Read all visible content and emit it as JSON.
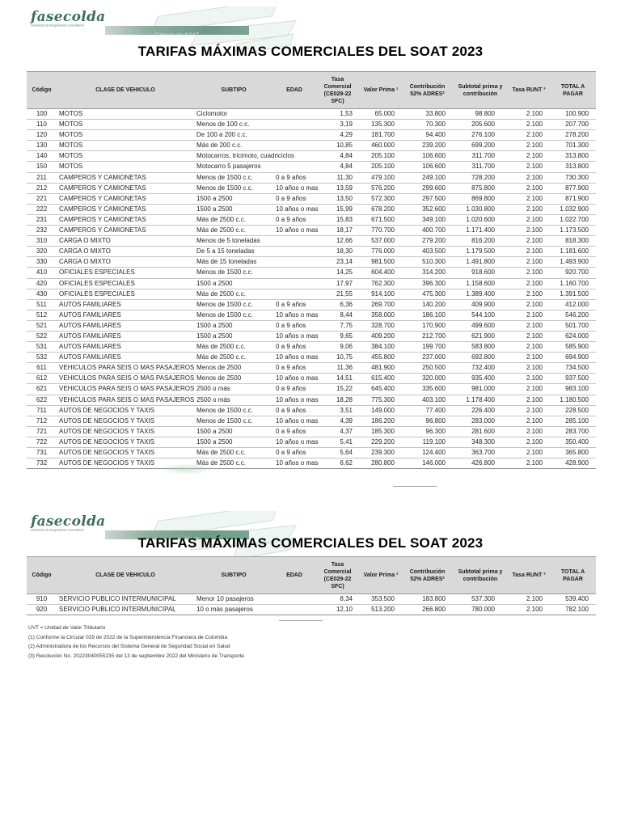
{
  "page": {
    "title": "TARIFAS MÁXIMAS COMERCIALES DEL SOAT 2023"
  },
  "logo": {
    "brand": "fasecolda",
    "tagline": "Federación de Aseguradores Colombianos",
    "banner": "Cámara de SOAT",
    "brand_color": "#3d6f5f",
    "banner_green": "#6f9a87"
  },
  "colors": {
    "table_header_bg": "#d9d9d9",
    "row_border": "#c3c3c3"
  },
  "table_headers": [
    "Código",
    "CLASE DE VEHICULO",
    "SUBTIPO",
    "EDAD",
    "Tasa Comercial (CE029-22 SFC)",
    "Valor Prima ¹",
    "Contribución 52% ADRES²",
    "Subtotal prima y contribución",
    "Tasa RUNT ³",
    "TOTAL A PAGAR"
  ],
  "table1": {
    "rows": [
      [
        "100",
        "MOTOS",
        "Ciclomotor",
        "",
        "1,53",
        "65.000",
        "33.800",
        "98.800",
        "2.100",
        "100.900"
      ],
      [
        "110",
        "MOTOS",
        "Menos de 100 c.c.",
        "",
        "3,19",
        "135.300",
        "70.300",
        "205.600",
        "2.100",
        "207.700"
      ],
      [
        "120",
        "MOTOS",
        "De 100 a 200 c.c.",
        "",
        "4,29",
        "181.700",
        "94.400",
        "276.100",
        "2.100",
        "278.200"
      ],
      [
        "130",
        "MOTOS",
        "Más de 200 c.c.",
        "",
        "10,85",
        "460.000",
        "239.200",
        "699.200",
        "2.100",
        "701.300"
      ],
      [
        "140",
        "MOTOS",
        "Motocarros, tricimoto, cuadriciclos",
        "",
        "4,84",
        "205.100",
        "106.600",
        "311.700",
        "2.100",
        "313.800"
      ],
      [
        "150",
        "MOTOS",
        "Motocarro 5 pasajeros",
        "",
        "4,84",
        "205.100",
        "106.600",
        "311.700",
        "2.100",
        "313.800"
      ],
      [
        "211",
        "CAMPEROS Y CAMIONETAS",
        "Menos de 1500 c.c.",
        "0 a 9 años",
        "11,30",
        "479.100",
        "249.100",
        "728.200",
        "2.100",
        "730.300"
      ],
      [
        "212",
        "CAMPEROS Y CAMIONETAS",
        "Menos de 1500 c.c.",
        "10 años o mas",
        "13,59",
        "576.200",
        "299.600",
        "875.800",
        "2.100",
        "877.900"
      ],
      [
        "221",
        "CAMPEROS Y CAMIONETAS",
        "1500 a 2500",
        "0 a 9 años",
        "13,50",
        "572.300",
        "297.500",
        "869.800",
        "2.100",
        "871.900"
      ],
      [
        "222",
        "CAMPEROS Y CAMIONETAS",
        "1500 a 2500",
        "10 años o mas",
        "15,99",
        "678.200",
        "352.600",
        "1.030.800",
        "2.100",
        "1.032.900"
      ],
      [
        "231",
        "CAMPEROS Y CAMIONETAS",
        "Más de 2500 c.c.",
        "0 a 9 años",
        "15,83",
        "671.500",
        "349.100",
        "1.020.600",
        "2.100",
        "1.022.700"
      ],
      [
        "232",
        "CAMPEROS Y CAMIONETAS",
        "Más de 2500 c.c.",
        "10 años o mas",
        "18,17",
        "770.700",
        "400.700",
        "1.171.400",
        "2.100",
        "1.173.500"
      ],
      [
        "310",
        "CARGA O MIXTO",
        "Menos de 5 toneladas",
        "",
        "12,66",
        "537.000",
        "279.200",
        "816.200",
        "2.100",
        "818.300"
      ],
      [
        "320",
        "CARGA O MIXTO",
        "De 5 a 15 toneladas",
        "",
        "18,30",
        "776.000",
        "403.500",
        "1.179.500",
        "2.100",
        "1.181.600"
      ],
      [
        "330",
        "CARGA O MIXTO",
        "Más de 15 toneladas",
        "",
        "23,14",
        "981.500",
        "510.300",
        "1.491.800",
        "2.100",
        "1.493.900"
      ],
      [
        "410",
        "OFICIALES ESPECIALES",
        "Menos de 1500 c.c.",
        "",
        "14,25",
        "604.400",
        "314.200",
        "918.600",
        "2.100",
        "920.700"
      ],
      [
        "420",
        "OFICIALES ESPECIALES",
        "1500 a 2500",
        "",
        "17,97",
        "762.300",
        "396.300",
        "1.158.600",
        "2.100",
        "1.160.700"
      ],
      [
        "430",
        "OFICIALES ESPECIALES",
        "Más de 2500 c.c.",
        "",
        "21,55",
        "914.100",
        "475.300",
        "1.389.400",
        "2.100",
        "1.391.500"
      ],
      [
        "511",
        "AUTOS FAMILIARES",
        "Menos de 1500 c.c.",
        "0 a 9 años",
        "6,36",
        "269.700",
        "140.200",
        "409.900",
        "2.100",
        "412.000"
      ],
      [
        "512",
        "AUTOS FAMILIARES",
        "Menos de 1500 c.c.",
        "10 años o mas",
        "8,44",
        "358.000",
        "186.100",
        "544.100",
        "2.100",
        "546.200"
      ],
      [
        "521",
        "AUTOS FAMILIARES",
        "1500 a 2500",
        "0 a 9 años",
        "7,75",
        "328.700",
        "170.900",
        "499.600",
        "2.100",
        "501.700"
      ],
      [
        "522",
        "AUTOS FAMILIARES",
        "1500 a 2500",
        "10 años o mas",
        "9,65",
        "409.200",
        "212.700",
        "621.900",
        "2.100",
        "624.000"
      ],
      [
        "531",
        "AUTOS FAMILIARES",
        "Más de 2500 c.c.",
        "0 a 9 años",
        "9,06",
        "384.100",
        "199.700",
        "583.800",
        "2.100",
        "585.900"
      ],
      [
        "532",
        "AUTOS FAMILIARES",
        "Más de 2500 c.c.",
        "10 años o mas",
        "10,75",
        "455.800",
        "237.000",
        "692.800",
        "2.100",
        "694.900"
      ],
      [
        "611",
        "VEHICULOS PARA SEIS O MAS PASAJEROS",
        "Menos de 2500",
        "0 a 9 años",
        "11,36",
        "481.900",
        "250.500",
        "732.400",
        "2.100",
        "734.500"
      ],
      [
        "612",
        "VEHICULOS PARA SEIS O MAS PASAJEROS",
        "Menos de 2500",
        "10 años o mas",
        "14,51",
        "615.400",
        "320.000",
        "935.400",
        "2.100",
        "937.500"
      ],
      [
        "621",
        "VEHICULOS PARA SEIS O MAS PASAJEROS",
        "2500 o más",
        "0 a 9 años",
        "15,22",
        "645.400",
        "335.600",
        "981.000",
        "2.100",
        "983.100"
      ],
      [
        "622",
        "VEHICULOS PARA SEIS O MAS PASAJEROS",
        "2500 o más",
        "10 años o mas",
        "18,28",
        "775.300",
        "403.100",
        "1.178.400",
        "2.100",
        "1.180.500"
      ],
      [
        "711",
        "AUTOS DE NEGOCIOS Y TAXIS",
        "Menos de 1500 c.c.",
        "0 a 9 años",
        "3,51",
        "149.000",
        "77.400",
        "226.400",
        "2.100",
        "228.500"
      ],
      [
        "712",
        "AUTOS DE NEGOCIOS Y TAXIS",
        "Menos de 1500 c.c.",
        "10 años o mas",
        "4,39",
        "186.200",
        "96.800",
        "283.000",
        "2.100",
        "285.100"
      ],
      [
        "721",
        "AUTOS DE NEGOCIOS Y TAXIS",
        "1500 a 2500",
        "0 a 9 años",
        "4,37",
        "185.300",
        "96.300",
        "281.600",
        "2.100",
        "283.700"
      ],
      [
        "722",
        "AUTOS DE NEGOCIOS Y TAXIS",
        "1500 a 2500",
        "10 años o mas",
        "5,41",
        "229.200",
        "119.100",
        "348.300",
        "2.100",
        "350.400"
      ],
      [
        "731",
        "AUTOS DE NEGOCIOS Y TAXIS",
        "Más de 2500 c.c.",
        "0 a 9 años",
        "5,64",
        "239.300",
        "124.400",
        "363.700",
        "2.100",
        "365.800"
      ],
      [
        "732",
        "AUTOS DE NEGOCIOS Y TAXIS",
        "Más de 2500 c.c.",
        "10 años o mas",
        "6,62",
        "280.800",
        "146.000",
        "426.800",
        "2.100",
        "428.900"
      ]
    ]
  },
  "table2": {
    "rows": [
      [
        "910",
        "SERVICIO PUBLICO INTERMUNICIPAL",
        "Menor 10 pasajeros",
        "",
        "8,34",
        "353.500",
        "183.800",
        "537.300",
        "2.100",
        "539.400"
      ],
      [
        "920",
        "SERVICIO PUBLICO INTERMUNICIPAL",
        "10 o más pasajeros",
        "",
        "12,10",
        "513.200",
        "266.800",
        "780.000",
        "2.100",
        "782.100"
      ]
    ]
  },
  "footnotes": [
    "UVT = Unidad de Valor Tributario",
    "(1) Conforme la Circular 029 de 2022 de la Superintendencia Financiera de Colombia",
    "(2) Administradora de los Recursos del Sistema General de Seguridad Social en Salud",
    "(3) Resolución No. 20223040055235 del 13 de septiembre 2022 del Ministerio de Transporte"
  ]
}
